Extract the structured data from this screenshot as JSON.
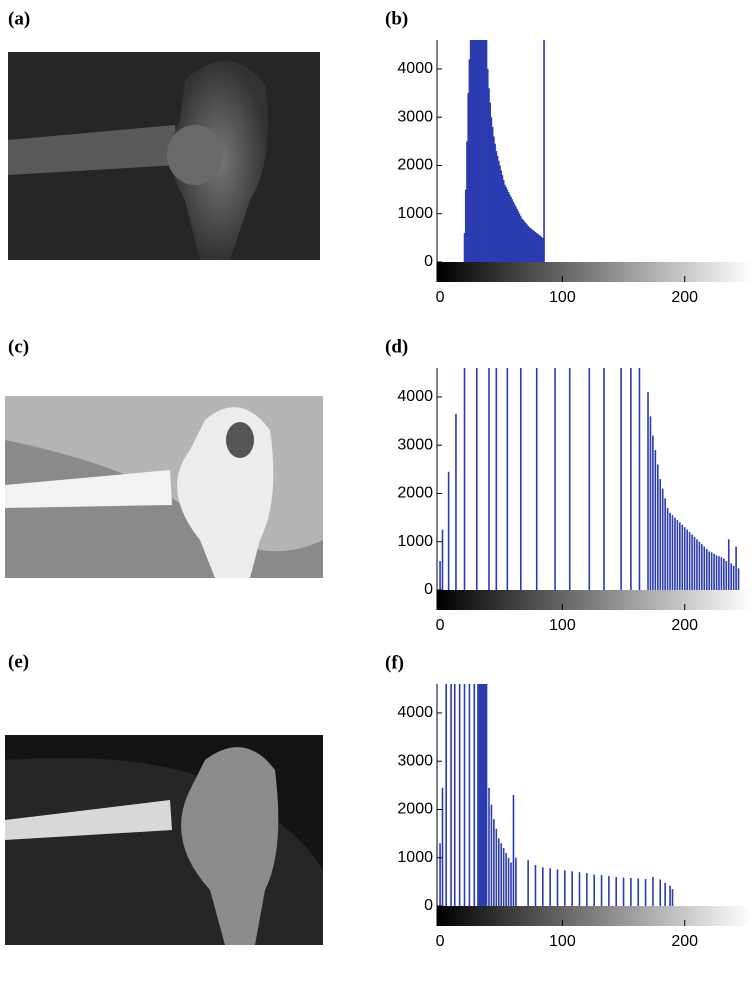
{
  "images": [
    {
      "label": "(a)"
    },
    {
      "label": "(c)"
    },
    {
      "label": "(e)"
    }
  ],
  "chart_data": [
    {
      "type": "bar",
      "title": "(b)",
      "color": "#2b3bb0",
      "x": [
        20,
        21,
        22,
        23,
        24,
        25,
        26,
        27,
        28,
        29,
        30,
        31,
        32,
        33,
        34,
        35,
        36,
        37,
        38,
        39,
        40,
        41,
        42,
        43,
        44,
        45,
        46,
        47,
        48,
        49,
        50,
        51,
        52,
        53,
        54,
        55,
        56,
        57,
        58,
        59,
        60,
        61,
        62,
        63,
        64,
        65,
        66,
        67,
        68,
        69,
        70,
        71,
        72,
        73,
        74,
        75,
        76,
        77,
        78,
        79,
        80,
        81,
        82,
        83,
        84,
        85
      ],
      "values": [
        600,
        1500,
        2500,
        3500,
        4200,
        4600,
        4600,
        4600,
        4600,
        4600,
        4600,
        4600,
        4600,
        4600,
        4600,
        4600,
        4600,
        4600,
        4600,
        4000,
        3600,
        3300,
        3000,
        2800,
        2600,
        2450,
        2300,
        2200,
        2100,
        2000,
        1900,
        1800,
        1700,
        1600,
        1550,
        1500,
        1450,
        1400,
        1350,
        1300,
        1250,
        1200,
        1150,
        1100,
        1050,
        1000,
        950,
        900,
        870,
        840,
        810,
        780,
        750,
        720,
        700,
        680,
        660,
        640,
        620,
        600,
        580,
        560,
        540,
        520,
        500,
        4600
      ],
      "xlim": [
        -2.5,
        255
      ],
      "ylim": [
        0,
        4600
      ],
      "xticks": [
        0,
        100,
        200
      ],
      "yticks": [
        0,
        1000,
        2000,
        3000,
        4000
      ]
    },
    {
      "type": "bar",
      "title": "(d)",
      "color": "#2b3bb0",
      "x": [
        0,
        2,
        7,
        13,
        20,
        30,
        40,
        46,
        55,
        66,
        79,
        94,
        106,
        122,
        134,
        148,
        156,
        163,
        170,
        172,
        174,
        176,
        178,
        180,
        182,
        184,
        186,
        188,
        190,
        192,
        194,
        196,
        198,
        200,
        202,
        204,
        206,
        208,
        210,
        212,
        214,
        216,
        218,
        220,
        222,
        224,
        226,
        228,
        230,
        232,
        234,
        236,
        238,
        240,
        242,
        244
      ],
      "values": [
        600,
        1250,
        2450,
        3650,
        4600,
        4600,
        4600,
        4600,
        4600,
        4600,
        4600,
        4600,
        4600,
        4600,
        4600,
        4600,
        4600,
        4600,
        4100,
        3600,
        3200,
        2900,
        2600,
        2300,
        2100,
        1900,
        1700,
        1600,
        1550,
        1500,
        1450,
        1400,
        1350,
        1300,
        1250,
        1200,
        1150,
        1100,
        1050,
        1000,
        950,
        900,
        850,
        800,
        780,
        750,
        720,
        700,
        680,
        650,
        600,
        1050,
        550,
        500,
        900,
        450
      ],
      "xlim": [
        -2.5,
        255
      ],
      "ylim": [
        0,
        4600
      ],
      "xticks": [
        0,
        100,
        200
      ],
      "yticks": [
        0,
        1000,
        2000,
        3000,
        4000
      ]
    },
    {
      "type": "bar",
      "title": "(f)",
      "color": "#2b3bb0",
      "x": [
        0,
        2,
        5,
        9,
        12,
        16,
        20,
        24,
        28,
        31,
        32,
        33,
        34,
        35,
        36,
        37,
        38,
        40,
        42,
        44,
        46,
        48,
        50,
        52,
        54,
        56,
        58,
        60,
        62,
        72,
        78,
        84,
        90,
        96,
        102,
        108,
        114,
        120,
        126,
        132,
        138,
        144,
        150,
        156,
        162,
        168,
        174,
        180,
        184,
        188,
        190
      ],
      "values": [
        1300,
        2450,
        4600,
        4600,
        4600,
        4600,
        4600,
        4600,
        4600,
        4600,
        4600,
        4600,
        4600,
        4600,
        4600,
        4600,
        4600,
        2450,
        2100,
        1800,
        1600,
        1400,
        1300,
        1200,
        1100,
        1000,
        900,
        2300,
        1000,
        950,
        850,
        800,
        780,
        760,
        740,
        720,
        700,
        680,
        650,
        640,
        620,
        600,
        590,
        580,
        570,
        560,
        600,
        550,
        480,
        420,
        350
      ],
      "xlim": [
        -2.5,
        255
      ],
      "ylim": [
        0,
        4600
      ],
      "xticks": [
        0,
        100,
        200
      ],
      "yticks": [
        0,
        1000,
        2000,
        3000,
        4000
      ]
    }
  ]
}
